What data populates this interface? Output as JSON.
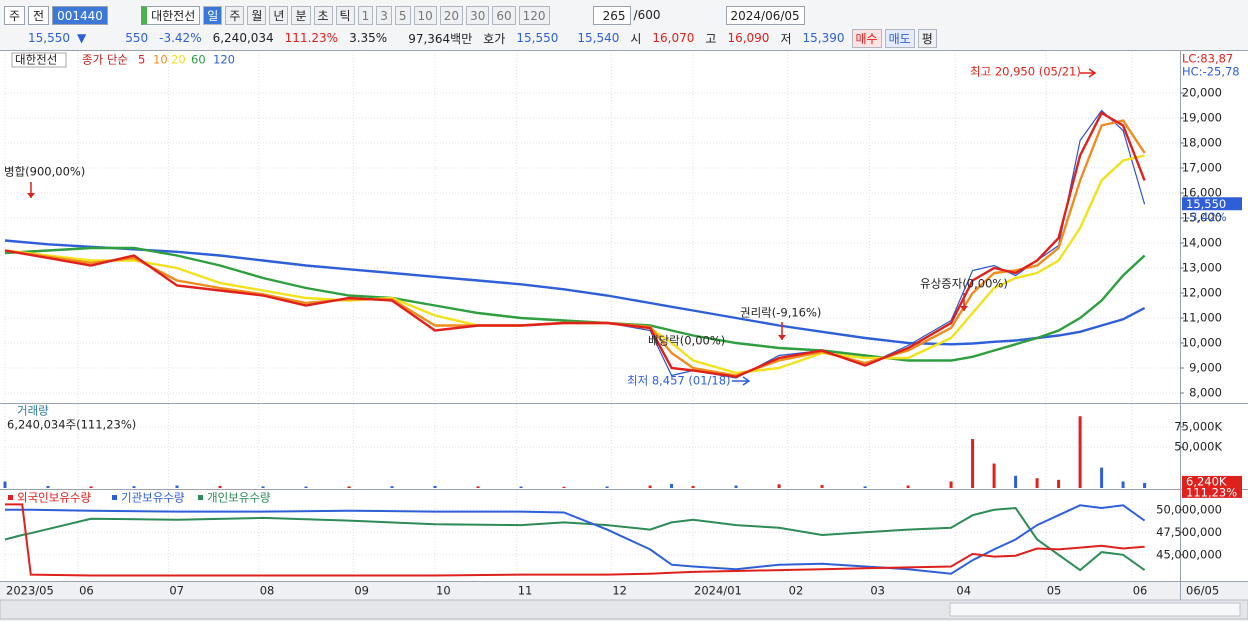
{
  "toolbar": {
    "period": "주",
    "mode": "전",
    "code": "001440",
    "name": "대한전선",
    "timeframes": [
      "일",
      "주",
      "월",
      "년",
      "분",
      "초",
      "틱"
    ],
    "intervals": [
      "1",
      "3",
      "5",
      "10",
      "20",
      "30",
      "60",
      "120"
    ],
    "count": "265",
    "max": "/600",
    "date": "2024/06/05"
  },
  "quote": {
    "price": "15,550",
    "arrow": "▼",
    "change": "550",
    "change_pct": "-3.42%",
    "volume": "6,240,034",
    "volume_ratio": "111.23%",
    "turnover": "3.35%",
    "amount": "97,364백만",
    "bid_label": "호가",
    "ask": "15,550",
    "bid": "15,540",
    "open_label": "시",
    "open": "16,070",
    "high_label": "고",
    "high": "16,090",
    "low_label": "저",
    "low": "15,390",
    "buy": "매수",
    "sell": "매도",
    "avg": "평"
  },
  "chart_data": [
    {
      "type": "line",
      "title": "대한전선",
      "legend_label": "종가 단순",
      "lc": "LC:83,87",
      "hc": "HC:-25,78",
      "x": [
        0,
        10,
        20,
        30,
        40,
        50,
        60,
        70,
        80,
        90,
        100,
        110,
        120,
        130,
        140,
        150,
        155,
        160,
        170,
        180,
        190,
        200,
        210,
        220,
        225,
        230,
        235,
        240,
        245,
        250,
        255,
        260,
        265
      ],
      "close": {
        "color": "#2a55c8",
        "values": [
          13700,
          13400,
          13100,
          13500,
          12300,
          12100,
          11900,
          11500,
          11800,
          11700,
          10500,
          10700,
          10700,
          10800,
          10800,
          10500,
          8700,
          8900,
          8600,
          9500,
          9700,
          9100,
          9900,
          10900,
          12900,
          13100,
          12700,
          13300,
          13900,
          18100,
          19300,
          18500,
          15550
        ]
      },
      "series": [
        {
          "name": "5",
          "color": "#e0201c",
          "values": [
            13700,
            13400,
            13100,
            13500,
            12300,
            12100,
            11900,
            11500,
            11800,
            11700,
            10500,
            10700,
            10700,
            10800,
            10800,
            10600,
            9000,
            8900,
            8650,
            9400,
            9700,
            9100,
            9800,
            10800,
            12500,
            13000,
            12800,
            13300,
            14200,
            17500,
            19200,
            18700,
            16500
          ]
        },
        {
          "name": "10",
          "color": "#f08c1e",
          "values": [
            13700,
            13450,
            13200,
            13400,
            12500,
            12200,
            11950,
            11600,
            11750,
            11750,
            10700,
            10700,
            10700,
            10800,
            10800,
            10650,
            9600,
            9000,
            8700,
            9300,
            9650,
            9200,
            9700,
            10600,
            12000,
            12800,
            12900,
            13100,
            13800,
            16500,
            18700,
            18900,
            17600
          ]
        },
        {
          "name": "20",
          "color": "#f2e21c",
          "values": [
            13700,
            13500,
            13300,
            13300,
            13000,
            12400,
            12100,
            11800,
            11700,
            11800,
            11100,
            10700,
            10700,
            10800,
            10800,
            10600,
            10000,
            9300,
            8800,
            9000,
            9600,
            9400,
            9400,
            10200,
            11200,
            12200,
            12600,
            12800,
            13300,
            14600,
            16500,
            17300,
            17500
          ]
        },
        {
          "name": "60",
          "color": "#2e9e3e",
          "values": [
            13600,
            13700,
            13800,
            13800,
            13500,
            13100,
            12600,
            12200,
            11900,
            11800,
            11500,
            11200,
            11000,
            10900,
            10800,
            10700,
            10500,
            10300,
            10000,
            9800,
            9700,
            9500,
            9300,
            9300,
            9450,
            9700,
            9950,
            10200,
            10500,
            11000,
            11700,
            12700,
            13500
          ]
        },
        {
          "name": "120",
          "color": "#2f5fd8",
          "values": [
            14100,
            13950,
            13850,
            13750,
            13650,
            13500,
            13300,
            13100,
            12950,
            12800,
            12650,
            12500,
            12350,
            12150,
            11900,
            11600,
            11450,
            11300,
            11000,
            10700,
            10450,
            10200,
            10000,
            9950,
            9980,
            10050,
            10100,
            10200,
            10300,
            10450,
            10700,
            10950,
            11400
          ]
        }
      ],
      "xlim": [
        0,
        273
      ],
      "ylim": [
        7600,
        21040
      ],
      "yticks": [
        {
          "value": 8000,
          "label": "8,000"
        },
        {
          "value": 9000,
          "label": "9,000"
        },
        {
          "value": 10000,
          "label": "10,000"
        },
        {
          "value": 11000,
          "label": "11,000"
        },
        {
          "value": 12000,
          "label": "12,000"
        },
        {
          "value": 13000,
          "label": "13,000"
        },
        {
          "value": 14000,
          "label": "14,000"
        },
        {
          "value": 15000,
          "label": "15,000"
        },
        {
          "value": 16000,
          "label": "16,000"
        },
        {
          "value": 17000,
          "label": "17,000"
        },
        {
          "value": 18000,
          "label": "18,000"
        },
        {
          "value": 19000,
          "label": "19,000"
        },
        {
          "value": 20000,
          "label": "20,000"
        }
      ],
      "last_label": "15,550",
      "last_change": "-3,42%",
      "annotations": [
        "병합(900,00%)",
        "배당락(0,00%)",
        "권리락(-9,16%)",
        "유상증자(0,00%)",
        "최고 20,950 (05/21)",
        "최저 8,457 (01/18)"
      ]
    },
    {
      "type": "bar",
      "title": "거래량",
      "subtitle": "6,240,034주(111,23%)",
      "x": [
        0,
        10,
        20,
        30,
        40,
        50,
        60,
        70,
        80,
        90,
        100,
        110,
        120,
        130,
        140,
        150,
        155,
        160,
        170,
        180,
        190,
        200,
        210,
        220,
        225,
        230,
        235,
        240,
        245,
        250,
        255,
        260,
        265
      ],
      "values": [
        8000,
        2500,
        2000,
        2200,
        3000,
        2500,
        2000,
        1800,
        2000,
        2200,
        2500,
        2000,
        1800,
        1500,
        1800,
        3000,
        5000,
        2500,
        3000,
        4500,
        3500,
        2000,
        3000,
        8000,
        60000,
        30000,
        15000,
        12000,
        10000,
        88000,
        25000,
        8000,
        6240
      ],
      "colors": [
        "#2f5fd8",
        "#2f5fd8",
        "#e0201c",
        "#2f5fd8",
        "#2f5fd8",
        "#e0201c",
        "#2f5fd8",
        "#2f5fd8",
        "#e0201c",
        "#2f5fd8",
        "#2f5fd8",
        "#e0201c",
        "#2f5fd8",
        "#e0201c",
        "#2f5fd8",
        "#e0201c",
        "#2f5fd8",
        "#e0201c",
        "#2f5fd8",
        "#e0201c",
        "#e0201c",
        "#2f5fd8",
        "#e0201c",
        "#e0201c",
        "#e0201c",
        "#e0201c",
        "#2f5fd8",
        "#e0201c",
        "#e0201c",
        "#e0201c",
        "#2f5fd8",
        "#2f5fd8",
        "#2f5fd8"
      ],
      "xlim": [
        0,
        273
      ],
      "ylim": [
        0,
        103000
      ],
      "yticks": [
        {
          "value": 50000,
          "label": "50,000K"
        },
        {
          "value": 75000,
          "label": "75,000K"
        }
      ],
      "last_label": "6,240K",
      "last_change": "111,23%"
    },
    {
      "type": "line",
      "x": [
        0,
        4,
        6,
        20,
        40,
        60,
        80,
        100,
        120,
        130,
        140,
        150,
        155,
        160,
        170,
        180,
        190,
        200,
        210,
        220,
        225,
        230,
        235,
        240,
        245,
        250,
        255,
        260,
        265
      ],
      "series": [
        {
          "name": "외국인보유수량",
          "color": "#e0201c",
          "values": [
            50600000,
            50600000,
            42800000,
            42700000,
            42700000,
            42700000,
            42700000,
            42700000,
            42800000,
            42800000,
            42800000,
            42900000,
            43000000,
            43100000,
            43200000,
            43300000,
            43400000,
            43500000,
            43600000,
            43700000,
            45100000,
            44800000,
            44900000,
            45700000,
            45600000,
            45800000,
            46000000,
            45700000,
            45900000
          ]
        },
        {
          "name": "기관보유수량",
          "color": "#2f5fd8",
          "values": [
            50000000,
            50000000,
            50000000,
            49900000,
            49800000,
            49800000,
            49900000,
            49800000,
            49800000,
            49700000,
            47800000,
            45600000,
            43900000,
            43700000,
            43400000,
            43900000,
            44000000,
            43700000,
            43400000,
            42900000,
            44400000,
            45600000,
            46700000,
            48300000,
            49400000,
            50500000,
            50200000,
            50500000,
            48800000
          ]
        },
        {
          "name": "개인보유수량",
          "color": "#2e8b57",
          "values": [
            46700000,
            47200000,
            47400000,
            49000000,
            48900000,
            49100000,
            48800000,
            48400000,
            48300000,
            48600000,
            48300000,
            47800000,
            48600000,
            48900000,
            48300000,
            48000000,
            47200000,
            47500000,
            47800000,
            48000000,
            49400000,
            50000000,
            50200000,
            46700000,
            45000000,
            43300000,
            45300000,
            45000000,
            43300000
          ]
        }
      ],
      "xlim": [
        0,
        273
      ],
      "ylim": [
        42200000,
        52200000
      ],
      "yticks": [
        {
          "value": 45000000,
          "label": "45,000,000"
        },
        {
          "value": 47500000,
          "label": "47,500,000"
        },
        {
          "value": 50000000,
          "label": "50,000,000"
        }
      ],
      "xticks": [
        {
          "value": 0,
          "label": "2023/05"
        },
        {
          "value": 17,
          "label": "06"
        },
        {
          "value": 38,
          "label": "07"
        },
        {
          "value": 59,
          "label": "08"
        },
        {
          "value": 81,
          "label": "09"
        },
        {
          "value": 100,
          "label": "10"
        },
        {
          "value": 119,
          "label": "11"
        },
        {
          "value": 141,
          "label": "12"
        },
        {
          "value": 160,
          "label": "2024/01"
        },
        {
          "value": 182,
          "label": "02"
        },
        {
          "value": 201,
          "label": "03"
        },
        {
          "value": 221,
          "label": "04"
        },
        {
          "value": 242,
          "label": "05"
        },
        {
          "value": 262,
          "label": "06"
        }
      ],
      "date_label": "06/05"
    }
  ]
}
